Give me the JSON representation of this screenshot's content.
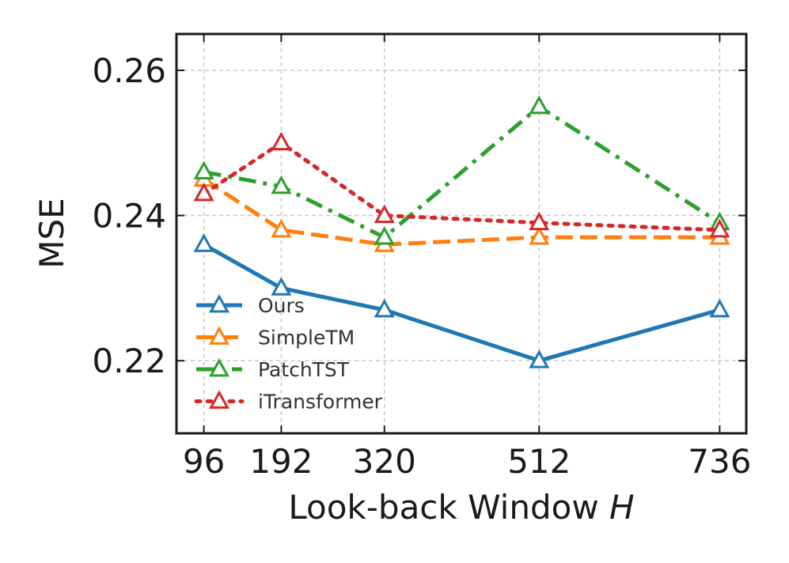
{
  "chart_data": {
    "type": "line",
    "title": "",
    "xlabel": "Look-back Window",
    "xlabel_var": "H",
    "ylabel": "MSE",
    "x": [
      96,
      192,
      320,
      512,
      736
    ],
    "x_tick_labels": [
      "96",
      "192",
      "320",
      "512",
      "736"
    ],
    "xlim": [
      62,
      769
    ],
    "ylim": [
      0.21,
      0.265
    ],
    "y_ticks": [
      0.22,
      0.24,
      0.26
    ],
    "y_tick_labels": [
      "0.22",
      "0.24",
      "0.26"
    ],
    "grid": true,
    "legend_position": "lower-left",
    "series": [
      {
        "name": "Ours",
        "values": [
          0.236,
          0.23,
          0.227,
          0.22,
          0.227
        ],
        "color": "#1f77b4",
        "dash": "solid",
        "marker": "triangle-open"
      },
      {
        "name": "SimpleTM",
        "values": [
          0.245,
          0.238,
          0.236,
          0.237,
          0.237
        ],
        "color": "#ff7f0e",
        "dash": "dashed",
        "marker": "triangle-open"
      },
      {
        "name": "PatchTST",
        "values": [
          0.246,
          0.244,
          0.237,
          0.255,
          0.239
        ],
        "color": "#2ca02c",
        "dash": "dashdot",
        "marker": "triangle-open"
      },
      {
        "name": "iTransformer",
        "values": [
          0.243,
          0.25,
          0.24,
          0.239,
          0.238
        ],
        "color": "#d62728",
        "dash": "dotted",
        "marker": "triangle-open"
      }
    ]
  }
}
